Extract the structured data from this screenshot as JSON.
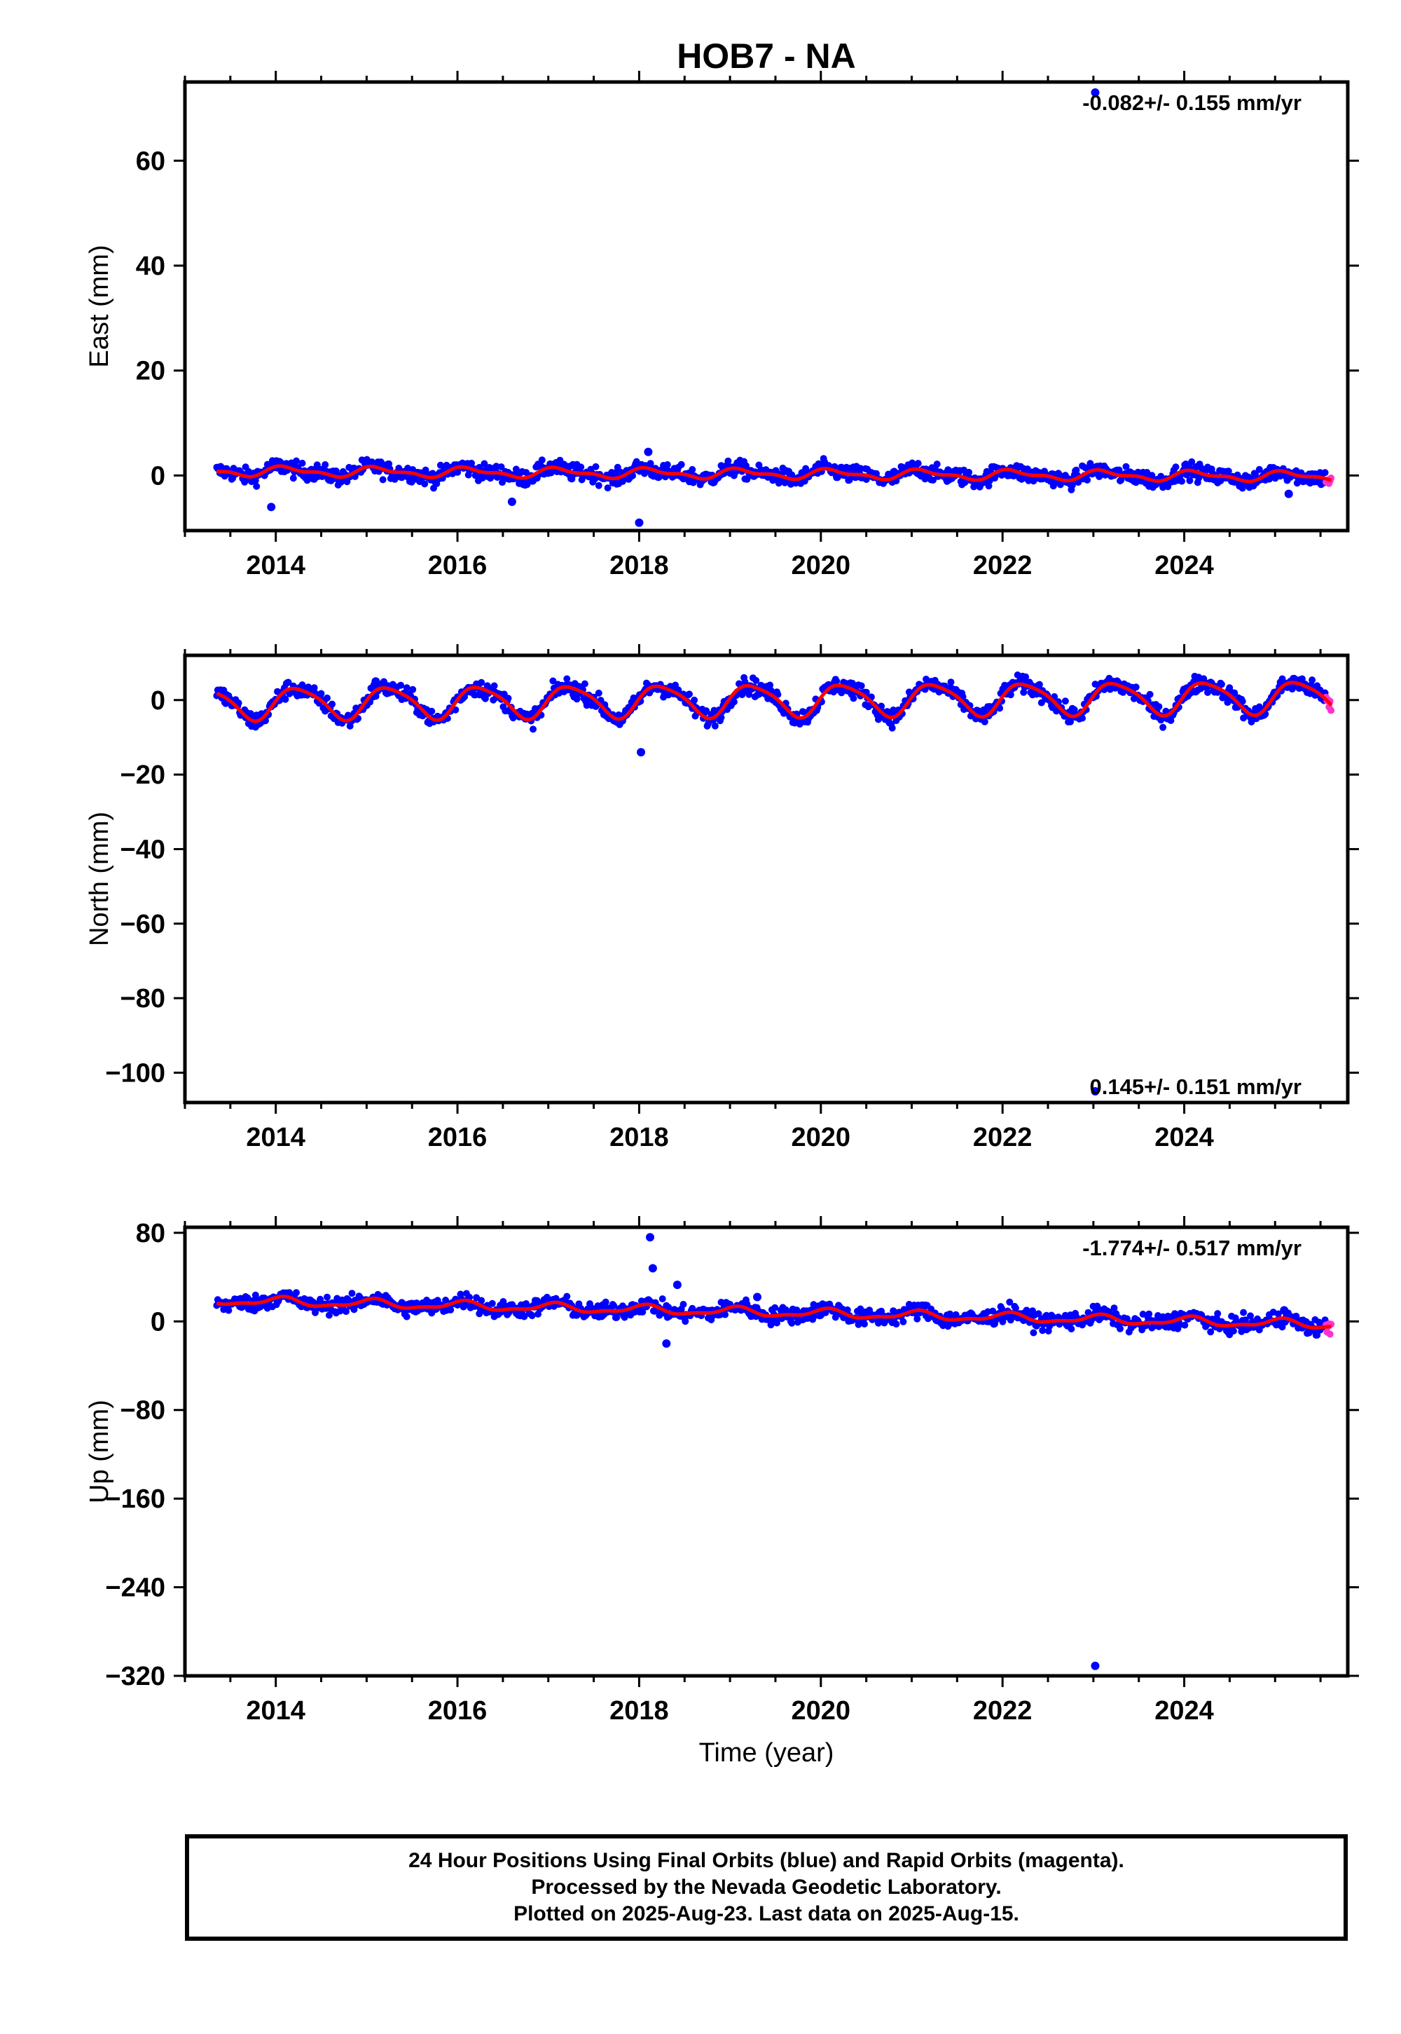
{
  "title": "HOB7 - NA",
  "colors": {
    "final_orbits": "#0000ff",
    "rapid_orbits": "#ff33cc",
    "model_fit": "#ff0000"
  },
  "xlabel": "Time (year)",
  "footer": {
    "line1": "24 Hour Positions Using Final Orbits (blue) and Rapid Orbits (magenta).",
    "line2": "Processed by the Nevada Geodetic Laboratory.",
    "line3": "Plotted on 2025-Aug-23. Last data on 2025-Aug-15."
  },
  "chart_data": [
    {
      "type": "scatter",
      "component": "east",
      "ylabel": "East (mm)",
      "rate_text": "-0.082+/- 0.155 mm/yr",
      "rate_placement": "top-right",
      "xlim": [
        2013.0,
        2025.8
      ],
      "ylim": [
        -10.5,
        75
      ],
      "xticks": [
        2014,
        2016,
        2018,
        2020,
        2022,
        2024
      ],
      "yticks": [
        0,
        20,
        40,
        60
      ],
      "grid": false,
      "series": {
        "time_range": [
          2013.35,
          2025.62
        ],
        "rapid_start": 2025.55,
        "trend": {
          "offset": 0.3,
          "rate": -0.082
        },
        "seasonal": {
          "annual_amp": 0.8,
          "annual_phase": 0.8,
          "semiannual_amp": 0.4,
          "semiannual_phase": 1.5
        },
        "scatter_amplitude": 1.5,
        "outliers": [
          {
            "x": 2013.95,
            "y": -6
          },
          {
            "x": 2016.6,
            "y": -5
          },
          {
            "x": 2018.0,
            "y": -9
          },
          {
            "x": 2018.1,
            "y": 4.5
          },
          {
            "x": 2023.02,
            "y": 73
          },
          {
            "x": 2025.15,
            "y": -3.5
          }
        ]
      }
    },
    {
      "type": "scatter",
      "component": "north",
      "ylabel": "North (mm)",
      "rate_text": "0.145+/- 0.151 mm/yr",
      "rate_placement": "bottom-right",
      "xlim": [
        2013.0,
        2025.8
      ],
      "ylim": [
        -108,
        12
      ],
      "xticks": [
        2014,
        2016,
        2018,
        2020,
        2022,
        2024
      ],
      "yticks": [
        0,
        -20,
        -40,
        -60,
        -80,
        -100
      ],
      "grid": false,
      "series": {
        "time_range": [
          2013.35,
          2025.62
        ],
        "rapid_start": 2025.55,
        "trend": {
          "offset": 0.0,
          "rate": 0.145
        },
        "seasonal": {
          "annual_amp": 4.2,
          "annual_phase": 0.0,
          "semiannual_amp": 0.8,
          "semiannual_phase": 0.8
        },
        "scatter_amplitude": 2.2,
        "outliers": [
          {
            "x": 2018.02,
            "y": -14
          },
          {
            "x": 2023.02,
            "y": -105
          },
          {
            "x": 2015.1,
            "y": 5
          }
        ]
      }
    },
    {
      "type": "scatter",
      "component": "up",
      "ylabel": "Up (mm)",
      "rate_text": "-1.774+/- 0.517 mm/yr",
      "rate_placement": "top-right",
      "xlim": [
        2013.0,
        2025.8
      ],
      "ylim": [
        -320,
        85
      ],
      "xticks": [
        2014,
        2016,
        2018,
        2020,
        2022,
        2024
      ],
      "yticks": [
        80,
        0,
        -80,
        -160,
        -240,
        -320
      ],
      "grid": false,
      "series": {
        "time_range": [
          2013.35,
          2025.62
        ],
        "rapid_start": 2025.55,
        "trend": {
          "offset": 8.0,
          "rate": -1.774
        },
        "seasonal": {
          "annual_amp": 3.5,
          "annual_phase": 1.2,
          "semiannual_amp": 1.5,
          "semiannual_phase": 0.3
        },
        "scatter_amplitude": 7,
        "outliers": [
          {
            "x": 2018.12,
            "y": 76
          },
          {
            "x": 2018.15,
            "y": 48
          },
          {
            "x": 2018.42,
            "y": 33
          },
          {
            "x": 2018.3,
            "y": -20
          },
          {
            "x": 2019.3,
            "y": 22
          },
          {
            "x": 2023.02,
            "y": -311
          },
          {
            "x": 2025.1,
            "y": 10
          }
        ]
      }
    }
  ]
}
